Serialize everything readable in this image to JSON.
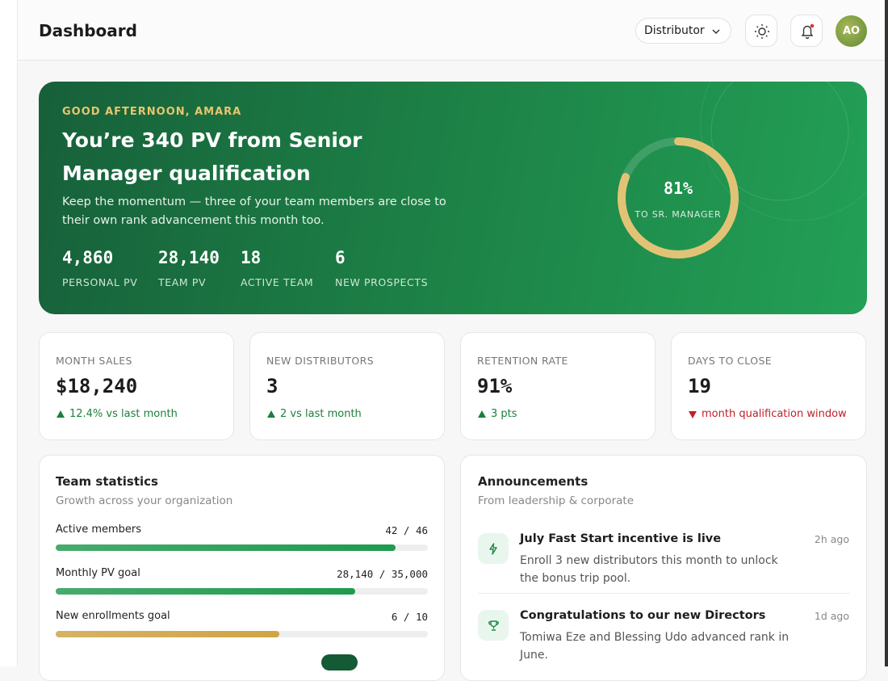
{
  "header": {
    "title": "Dashboard",
    "role": "Distributor",
    "avatar": "AO"
  },
  "hero": {
    "greeting": "GOOD AFTERNOON, AMARA",
    "headline": "You’re 340 PV from Senior Manager qualification",
    "message": "Keep the momentum — three of your team members are close to their own rank advancement this month too.",
    "stats": [
      {
        "value": "4,860",
        "label": "PERSONAL PV"
      },
      {
        "value": "28,140",
        "label": "TEAM PV"
      },
      {
        "value": "18",
        "label": "ACTIVE TEAM"
      },
      {
        "value": "6",
        "label": "NEW PROSPECTS"
      }
    ],
    "progress": {
      "value": 81,
      "label": "81%",
      "caption": "TO SR. MANAGER",
      "color": "#e2c375"
    }
  },
  "kpis": [
    {
      "label": "MONTH SALES",
      "value": "$18,240",
      "change": "12.4% vs last month",
      "trend": "up"
    },
    {
      "label": "NEW DISTRIBUTORS",
      "value": "3",
      "change": "2 vs last month",
      "trend": "up"
    },
    {
      "label": "RETENTION RATE",
      "value": "91%",
      "change": "3 pts",
      "trend": "up"
    },
    {
      "label": "DAYS TO CLOSE",
      "value": "19",
      "change": "month qualification window",
      "trend": "down"
    }
  ],
  "team_stats": {
    "title": "Team statistics",
    "subtitle": "Growth across your organization",
    "rows": [
      {
        "label": "Active members",
        "value": 42,
        "target": 46,
        "value_label": "42 / 46",
        "color": "#1f9a4e"
      },
      {
        "label": "Monthly PV goal",
        "value": 28140,
        "target": 35000,
        "value_label": "28,140 / 35,000",
        "color": "#1f9a4e"
      },
      {
        "label": "New enrollments goal",
        "value": 6,
        "target": 10,
        "value_label": "6 / 10",
        "color": "#cfa443"
      }
    ]
  },
  "announcements": {
    "title": "Announcements",
    "subtitle": "From leadership & corporate",
    "items": [
      {
        "title": "July Fast Start incentive is live",
        "body": "Enroll 3 new distributors this month to unlock the bonus trip pool.",
        "time": "2h ago"
      },
      {
        "title": "Congratulations to our new Directors",
        "body": "Tomiwa Eze and Blessing Udo advanced rank in June.",
        "time": "1d ago"
      }
    ]
  }
}
